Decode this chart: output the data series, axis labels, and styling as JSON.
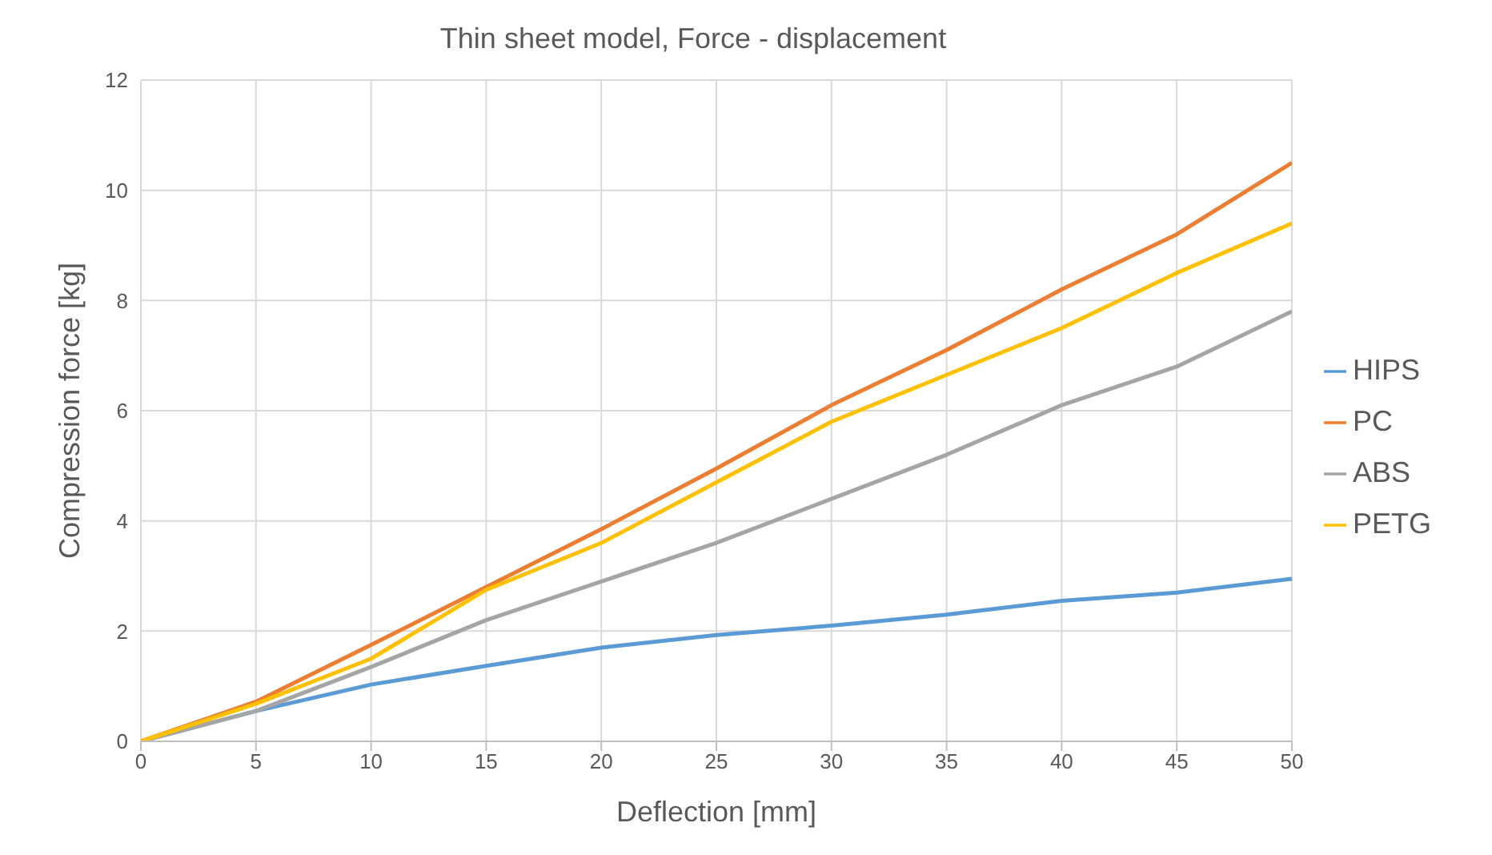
{
  "chart_data": {
    "type": "line",
    "title": "Thin sheet model, Force - displacement",
    "xlabel": "Deflection [mm]",
    "ylabel": "Compression force [kg]",
    "x": [
      0,
      5,
      10,
      15,
      20,
      25,
      30,
      35,
      40,
      45,
      50
    ],
    "series": [
      {
        "name": "HIPS",
        "color": "#5b9bd5",
        "values": [
          0,
          0.55,
          1.03,
          1.37,
          1.7,
          1.93,
          2.1,
          2.3,
          2.55,
          2.7,
          2.95
        ]
      },
      {
        "name": "PC",
        "color": "#ed7d31",
        "values": [
          0,
          0.72,
          1.75,
          2.8,
          3.85,
          4.95,
          6.1,
          7.1,
          8.2,
          9.2,
          10.5
        ]
      },
      {
        "name": "ABS",
        "color": "#a5a5a5",
        "values": [
          0,
          0.55,
          1.35,
          2.2,
          2.9,
          3.6,
          4.4,
          5.2,
          6.1,
          6.8,
          7.8
        ]
      },
      {
        "name": "PETG",
        "color": "#ffc000",
        "values": [
          0,
          0.68,
          1.5,
          2.75,
          3.6,
          4.7,
          5.8,
          6.65,
          7.5,
          8.5,
          9.4
        ]
      }
    ],
    "xlim": [
      0,
      50
    ],
    "xticks": [
      0,
      5,
      10,
      15,
      20,
      25,
      30,
      35,
      40,
      45,
      50
    ],
    "ylim": [
      0,
      12
    ],
    "yticks": [
      0,
      2,
      4,
      6,
      8,
      10,
      12
    ],
    "grid": true,
    "legend": "right",
    "marker": "none",
    "line_style": "solid"
  }
}
